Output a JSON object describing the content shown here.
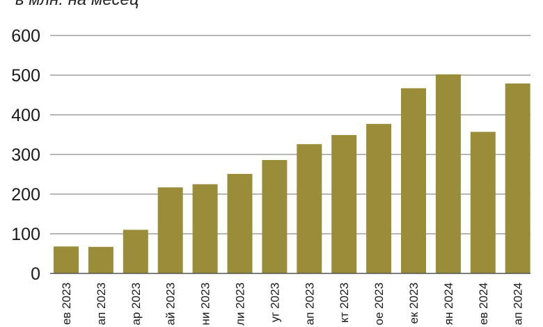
{
  "chart_data": {
    "type": "bar",
    "title": "в млн. на месец",
    "xlabel": "",
    "ylabel": "",
    "categories": [
      "ев 2023",
      "ап 2023",
      "ар 2023",
      "ай 2023",
      "ни 2023",
      "ли 2023",
      "уг 2023",
      "ап 2023",
      "кт 2023",
      "ое 2023",
      "ек 2023",
      "ян 2024",
      "ев 2024",
      "ап 2024"
    ],
    "values": [
      68,
      67,
      110,
      217,
      225,
      251,
      286,
      326,
      349,
      377,
      467,
      502,
      357,
      479
    ],
    "ylim": [
      0,
      600
    ],
    "yticks": [
      "0",
      "100",
      "200",
      "300",
      "400",
      "500",
      "600"
    ],
    "grid": true,
    "bar_color": "#9a8d3a"
  }
}
